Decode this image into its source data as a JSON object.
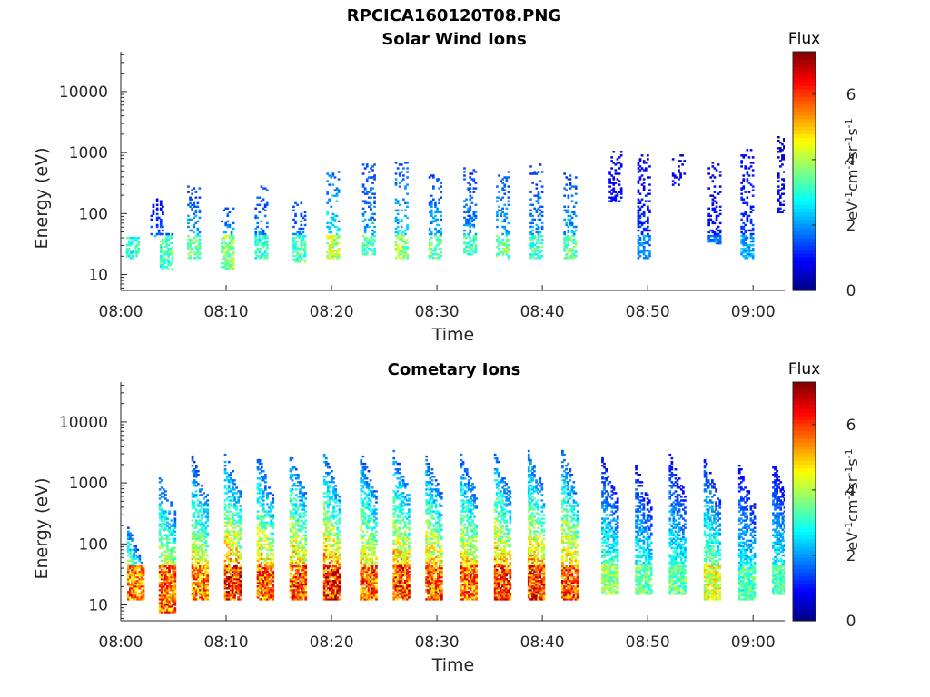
{
  "figure": {
    "title": "RPCICA160120T08.PNG"
  },
  "colormap": "jet",
  "chart_data": [
    {
      "type": "heatmap",
      "title": "Solar Wind Ions",
      "xlabel": "Time",
      "ylabel": "Energy (eV)",
      "x_tick_labels": [
        "08:00",
        "08:10",
        "08:20",
        "08:30",
        "08:40",
        "08:50",
        "09:00"
      ],
      "x_range_minutes": [
        0,
        63
      ],
      "y_scale": "log",
      "y_tick_labels": [
        "10",
        "100",
        "1000",
        "10000"
      ],
      "y_range": [
        5.5,
        45000
      ],
      "colorbar": {
        "title": "Flux",
        "label": "eV-1cm-2sr-1s-1",
        "label_display": {
          "base": [
            "eV",
            "cm",
            "sr",
            "s"
          ],
          "sup": [
            "-1",
            "-2",
            "-1",
            "-1"
          ]
        },
        "range": [
          0,
          7.3
        ],
        "ticks": [
          "0",
          "2",
          "4",
          "6"
        ]
      },
      "bursts": [
        {
          "t": 0.5,
          "e_lo": 17,
          "e_hi": 40,
          "peak": 3.2
        },
        {
          "t": 2.8,
          "e_lo": 40,
          "e_hi": 170,
          "peak": 2.3
        },
        {
          "t": 3.7,
          "e_lo": 12,
          "e_hi": 45,
          "peak": 3.4
        },
        {
          "t": 6.3,
          "e_lo": 18,
          "e_hi": 300,
          "peak": 3.6
        },
        {
          "t": 9.5,
          "e_lo": 12,
          "e_hi": 120,
          "peak": 3.9
        },
        {
          "t": 12.7,
          "e_lo": 17,
          "e_hi": 270,
          "peak": 3.3
        },
        {
          "t": 16.3,
          "e_lo": 15,
          "e_hi": 150,
          "peak": 3.4
        },
        {
          "t": 19.5,
          "e_lo": 17,
          "e_hi": 500,
          "peak": 4.4
        },
        {
          "t": 22.9,
          "e_lo": 20,
          "e_hi": 800,
          "peak": 3.4
        },
        {
          "t": 26.0,
          "e_lo": 17,
          "e_hi": 700,
          "peak": 4.0
        },
        {
          "t": 29.2,
          "e_lo": 17,
          "e_hi": 500,
          "peak": 3.6
        },
        {
          "t": 32.5,
          "e_lo": 20,
          "e_hi": 550,
          "peak": 3.4
        },
        {
          "t": 35.6,
          "e_lo": 17,
          "e_hi": 500,
          "peak": 3.7
        },
        {
          "t": 38.8,
          "e_lo": 18,
          "e_hi": 700,
          "peak": 3.4
        },
        {
          "t": 42.0,
          "e_lo": 17,
          "e_hi": 450,
          "peak": 3.6
        },
        {
          "t": 46.3,
          "e_lo": 150,
          "e_hi": 1000,
          "peak": 1.5
        },
        {
          "t": 49.0,
          "e_lo": 17,
          "e_hi": 1100,
          "peak": 2.0
        },
        {
          "t": 52.3,
          "e_lo": 280,
          "e_hi": 1000,
          "peak": 1.4
        },
        {
          "t": 55.7,
          "e_lo": 30,
          "e_hi": 700,
          "peak": 1.8
        },
        {
          "t": 58.8,
          "e_lo": 17,
          "e_hi": 1100,
          "peak": 2.2
        },
        {
          "t": 62.3,
          "e_lo": 100,
          "e_hi": 1800,
          "peak": 1.6
        }
      ]
    },
    {
      "type": "heatmap",
      "title": "Cometary Ions",
      "xlabel": "Time",
      "ylabel": "Energy (eV)",
      "x_tick_labels": [
        "08:00",
        "08:10",
        "08:20",
        "08:30",
        "08:40",
        "08:50",
        "09:00"
      ],
      "x_range_minutes": [
        0,
        63
      ],
      "y_scale": "log",
      "y_tick_labels": [
        "10",
        "100",
        "1000",
        "10000"
      ],
      "y_range": [
        5.5,
        45000
      ],
      "colorbar": {
        "title": "Flux",
        "label": "eV-1cm-2sr-1s-1",
        "label_display": {
          "base": [
            "eV",
            "cm",
            "sr",
            "s"
          ],
          "sup": [
            "-1",
            "-2",
            "-1",
            "-1"
          ]
        },
        "range": [
          0,
          7.3
        ],
        "ticks": [
          "0",
          "2",
          "4",
          "6"
        ]
      },
      "bursts": [
        {
          "t": 0.6,
          "e_lo": 12,
          "e_hi": 200,
          "peak": 6.0
        },
        {
          "t": 3.6,
          "e_lo": 7,
          "e_hi": 1500,
          "peak": 6.2
        },
        {
          "t": 6.7,
          "e_lo": 12,
          "e_hi": 2800,
          "peak": 6.0
        },
        {
          "t": 9.8,
          "e_lo": 12,
          "e_hi": 3200,
          "peak": 6.8
        },
        {
          "t": 12.9,
          "e_lo": 12,
          "e_hi": 3000,
          "peak": 6.3
        },
        {
          "t": 16.0,
          "e_lo": 12,
          "e_hi": 3200,
          "peak": 6.4
        },
        {
          "t": 19.2,
          "e_lo": 12,
          "e_hi": 3200,
          "peak": 6.8
        },
        {
          "t": 22.7,
          "e_lo": 12,
          "e_hi": 3200,
          "peak": 6.2
        },
        {
          "t": 25.8,
          "e_lo": 12,
          "e_hi": 3500,
          "peak": 6.5
        },
        {
          "t": 28.9,
          "e_lo": 12,
          "e_hi": 3000,
          "peak": 6.3
        },
        {
          "t": 32.2,
          "e_lo": 12,
          "e_hi": 3000,
          "peak": 6.2
        },
        {
          "t": 35.4,
          "e_lo": 12,
          "e_hi": 3200,
          "peak": 6.6
        },
        {
          "t": 38.6,
          "e_lo": 12,
          "e_hi": 3600,
          "peak": 6.6
        },
        {
          "t": 41.8,
          "e_lo": 12,
          "e_hi": 3600,
          "peak": 6.4
        },
        {
          "t": 45.6,
          "e_lo": 14,
          "e_hi": 2500,
          "peak": 4.2
        },
        {
          "t": 48.8,
          "e_lo": 14,
          "e_hi": 2000,
          "peak": 3.8
        },
        {
          "t": 52.0,
          "e_lo": 14,
          "e_hi": 3000,
          "peak": 3.8
        },
        {
          "t": 55.3,
          "e_lo": 12,
          "e_hi": 2500,
          "peak": 4.8
        },
        {
          "t": 58.6,
          "e_lo": 12,
          "e_hi": 2000,
          "peak": 3.6
        },
        {
          "t": 61.8,
          "e_lo": 14,
          "e_hi": 2200,
          "peak": 3.6
        }
      ]
    }
  ]
}
